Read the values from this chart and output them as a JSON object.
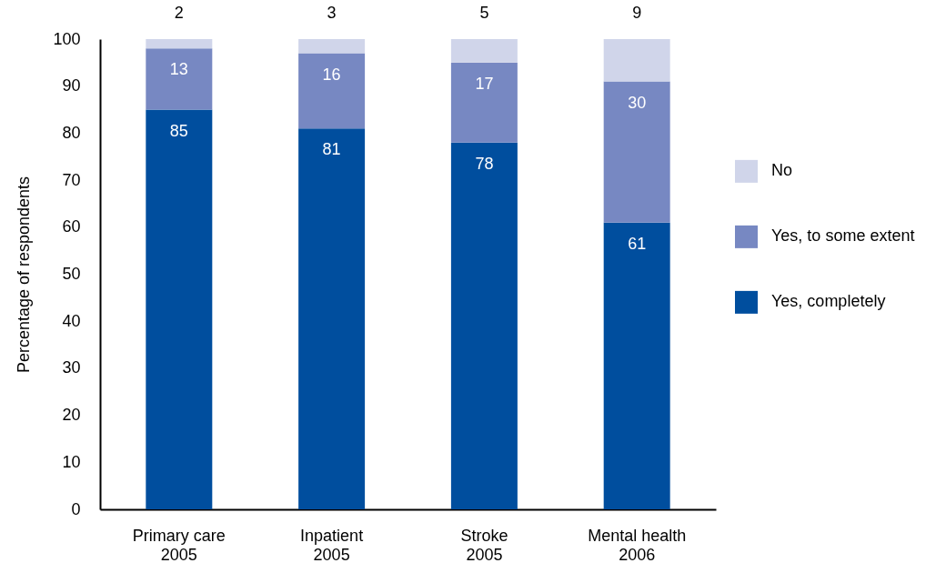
{
  "chart_data": {
    "type": "bar",
    "stacked": true,
    "categories": [
      "Primary care\n2005",
      "Inpatient\n2005",
      "Stroke\n2005",
      "Mental health\n2006"
    ],
    "series": [
      {
        "name": "Yes, completely",
        "color": "#004e9e",
        "values": [
          85,
          81,
          78,
          61
        ]
      },
      {
        "name": "Yes, to some extent",
        "color": "#7788c2",
        "values": [
          13,
          16,
          17,
          30
        ]
      },
      {
        "name": "No",
        "color": "#d0d5ea",
        "values": [
          2,
          3,
          5,
          9
        ]
      }
    ],
    "ylabel": "Percentage of respondents",
    "ylim": [
      0,
      100
    ],
    "yticks": [
      0,
      10,
      20,
      30,
      40,
      50,
      60,
      70,
      80,
      90,
      100
    ],
    "grid": false,
    "legend": "right",
    "data_labels": true
  }
}
